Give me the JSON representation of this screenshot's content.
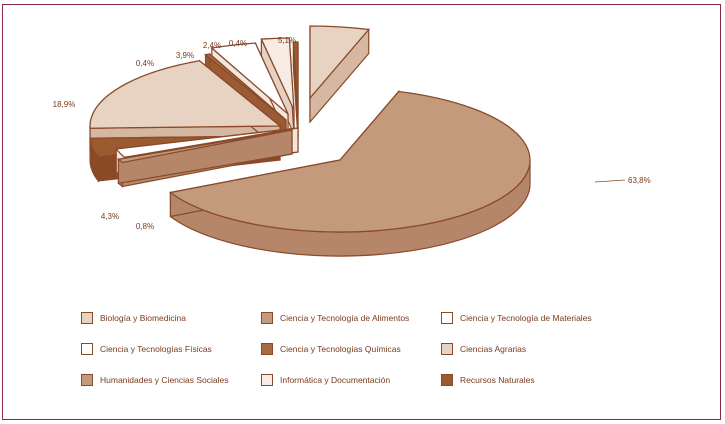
{
  "chart_data": {
    "type": "pie",
    "title": "",
    "colors": {
      "outline": "#8a4a2a",
      "text": "#7a3a1e",
      "frame": "#8a2a4a"
    },
    "slices": [
      {
        "name": "Ciencia y Tecnología de Alimentos",
        "label": "63,8%",
        "value": 63.8,
        "fill": "#c49a7c",
        "side": "#b6866a"
      },
      {
        "name": "Humanidades y Ciencias Sociales",
        "label": "0,8%",
        "value": 0.8,
        "fill": "#c49a7c",
        "side": "#b6866a"
      },
      {
        "name": "Ciencia y Tecnología de Materiales",
        "label": "",
        "value": 2.0,
        "fill": "#ffffff",
        "side": "#f3e6dc"
      },
      {
        "name": "Recursos Naturales",
        "label": "4,3%",
        "value": 4.3,
        "fill": "#9c5a30",
        "side": "#8a4a24"
      },
      {
        "name": "Biología y Biomedicina",
        "label": "18,9%",
        "value": 18.9,
        "fill": "#e8d3c2",
        "side": "#d6b8a2"
      },
      {
        "name": "Ciencia y Tecnologías Químicas",
        "label": "0,4%",
        "value": 0.4,
        "fill": "#a86a42",
        "side": "#9a5a34"
      },
      {
        "name": "Ciencia y Tecnologías Físicas",
        "label": "3,9%",
        "value": 3.9,
        "fill": "#ffffff",
        "side": "#f3e6dc"
      },
      {
        "name": "Informática y Documentación",
        "label": "2,4%",
        "value": 2.4,
        "fill": "#f6ece4",
        "side": "#e6d2c2"
      },
      {
        "name": "Recursos Naturales",
        "label": "0,4%",
        "value": 0.4,
        "fill": "#9c5a30",
        "side": "#8a4a24"
      },
      {
        "name": "Ciencias Agrarias",
        "label": "5,1%",
        "value": 5.1,
        "fill": "#e8d3c2",
        "side": "#d6b8a2"
      }
    ]
  },
  "legend": [
    {
      "label": "Biología y Biomedicina",
      "color": "#e8d3c2"
    },
    {
      "label": "Ciencia y Tecnología de Alimentos",
      "color": "#c49a7c"
    },
    {
      "label": "Ciencia y Tecnología de Materiales",
      "color": "#ffffff"
    },
    {
      "label": "Ciencia y Tecnologías Físicas",
      "color": "#ffffff"
    },
    {
      "label": "Ciencia y Tecnologías Químicas",
      "color": "#a86a42"
    },
    {
      "label": "Ciencias Agrarias",
      "color": "#e8d3c2"
    },
    {
      "label": "Humanidades y Ciencias Sociales",
      "color": "#c49a7c"
    },
    {
      "label": "Informática y Documentación",
      "color": "#f6ece4"
    },
    {
      "label": "Recursos Naturales",
      "color": "#9c5a30"
    }
  ]
}
